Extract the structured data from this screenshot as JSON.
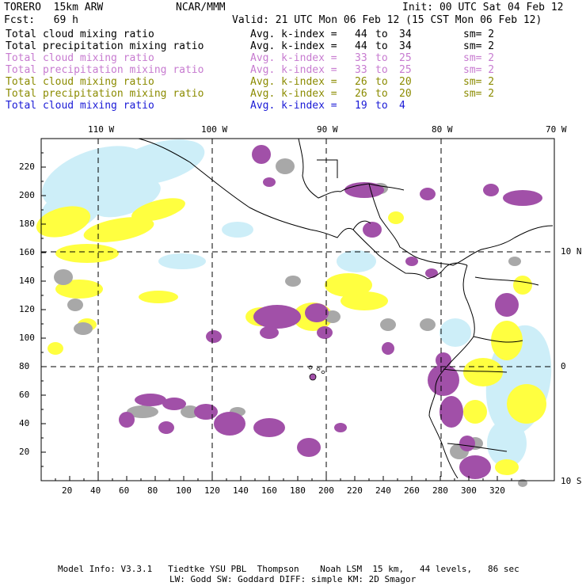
{
  "header": {
    "model": "TORERO  15km ARW",
    "org": "NCAR/MMM",
    "init": "Init: 00 UTC Sat 04 Feb 12",
    "fcst": "Fcst:   69 h",
    "valid": "Valid: 21 UTC Mon 06 Feb 12 (15 CST Mon 06 Feb 12)"
  },
  "legend": [
    {
      "field": "Total cloud mixing ratio",
      "index_label": "Avg. k-index =",
      "from": "44",
      "to_word": "to",
      "to": "34",
      "sm": "sm= 2",
      "color": "#000000"
    },
    {
      "field": "Total precipitation mixing ratio",
      "index_label": "Avg. k-index =",
      "from": "44",
      "to_word": "to",
      "to": "34",
      "sm": "sm= 2",
      "color": "#000000"
    },
    {
      "field": "Total cloud mixing ratio",
      "index_label": "Avg. k-index =",
      "from": "33",
      "to_word": "to",
      "to": "25",
      "sm": "sm= 2",
      "color": "#c77bd0"
    },
    {
      "field": "Total precipitation mixing ratio",
      "index_label": "Avg. k-index =",
      "from": "33",
      "to_word": "to",
      "to": "25",
      "sm": "sm= 2",
      "color": "#c77bd0"
    },
    {
      "field": "Total cloud mixing ratio",
      "index_label": "Avg. k-index =",
      "from": "26",
      "to_word": "to",
      "to": "20",
      "sm": "sm= 2",
      "color": "#8b8b00"
    },
    {
      "field": "Total precipitation mixing ratio",
      "index_label": "Avg. k-index =",
      "from": "26",
      "to_word": "to",
      "to": "20",
      "sm": "sm= 2",
      "color": "#8b8b00"
    },
    {
      "field": "Total cloud mixing ratio",
      "index_label": "Avg. k-index =",
      "from": "19",
      "to_word": "to",
      "to": "4",
      "sm": "",
      "color": "#1a1ad6"
    }
  ],
  "map": {
    "lon_labels": [
      "110 W",
      "100 W",
      "90 W",
      "80 W",
      "70 W"
    ],
    "lat_labels": [
      "10 N",
      "0",
      "10 S"
    ],
    "x_ticks": [
      "20",
      "40",
      "60",
      "80",
      "100",
      "120",
      "140",
      "160",
      "180",
      "200",
      "220",
      "240",
      "260",
      "280",
      "300",
      "320"
    ],
    "y_ticks": [
      "20",
      "40",
      "60",
      "80",
      "100",
      "120",
      "140",
      "160",
      "180",
      "200",
      "220"
    ],
    "colors": {
      "purple": "#a150a8",
      "gray": "#a8a8a8",
      "yellow": "#ffff40",
      "lightblue": "#cdeef8",
      "coast": "#000000"
    }
  },
  "footer": {
    "line1": "Model Info: V3.3.1   Tiedtke YSU PBL  Thompson    Noah LSM  15 km,   44 levels,   86 sec",
    "line2": "LW: Godd SW: Goddard DIFF: simple KM: 2D Smagor"
  }
}
